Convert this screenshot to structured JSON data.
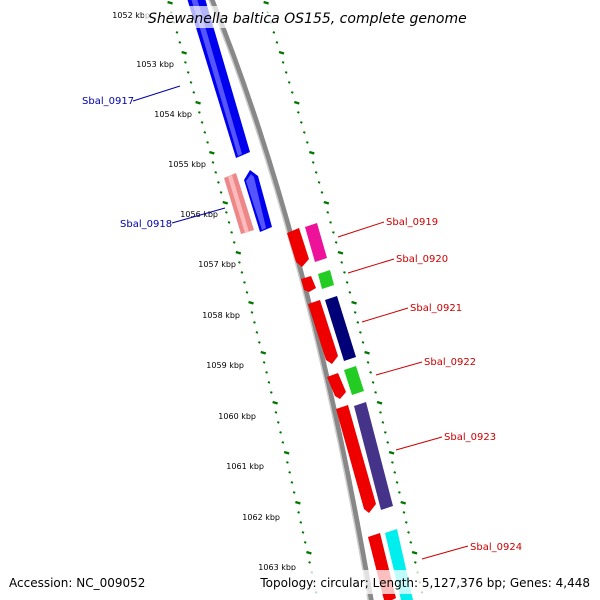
{
  "title": "Shewanella baltica OS155, complete genome",
  "footer": {
    "accession": "Accession: NC_009052",
    "summary": "Topology: circular; Length: 5,127,376 bp; Genes: 4,448"
  },
  "ticks": [
    "1052 kbp",
    "1053 kbp",
    "1054 kbp",
    "1055 kbp",
    "1056 kbp",
    "1057 kbp",
    "1058 kbp",
    "1059 kbp",
    "1060 kbp",
    "1061 kbp",
    "1062 kbp",
    "1063 kbp"
  ],
  "genes": [
    {
      "label": "Sbal_0917",
      "strand": "reverse",
      "color": "#0000ee",
      "label_color": "#0000aa"
    },
    {
      "label": "Sbal_0918",
      "strand": "reverse",
      "color": "#0000ee",
      "label_color": "#0000aa"
    },
    {
      "label": "Sbal_0919",
      "strand": "forward",
      "color": "#ee0000",
      "label_color": "#cc0000"
    },
    {
      "label": "Sbal_0920",
      "strand": "forward",
      "color": "#ee0000",
      "label_color": "#cc0000"
    },
    {
      "label": "Sbal_0921",
      "strand": "forward",
      "color": "#ee0000",
      "label_color": "#cc0000"
    },
    {
      "label": "Sbal_0922",
      "strand": "forward",
      "color": "#ee0000",
      "label_color": "#cc0000"
    },
    {
      "label": "Sbal_0923",
      "strand": "forward",
      "color": "#ee0000",
      "label_color": "#cc0000"
    },
    {
      "label": "Sbal_0924",
      "strand": "forward",
      "color": "#ee0000",
      "label_color": "#cc0000"
    }
  ],
  "colors": {
    "backbone": "#888888",
    "tick": "#007700",
    "blue": "#0000ee",
    "salmon": "#ee8888",
    "red": "#ee0000",
    "magenta": "#ee1199",
    "green": "#22cc22",
    "navy": "#000077",
    "slate": "#443388",
    "cyan": "#00eeee"
  }
}
